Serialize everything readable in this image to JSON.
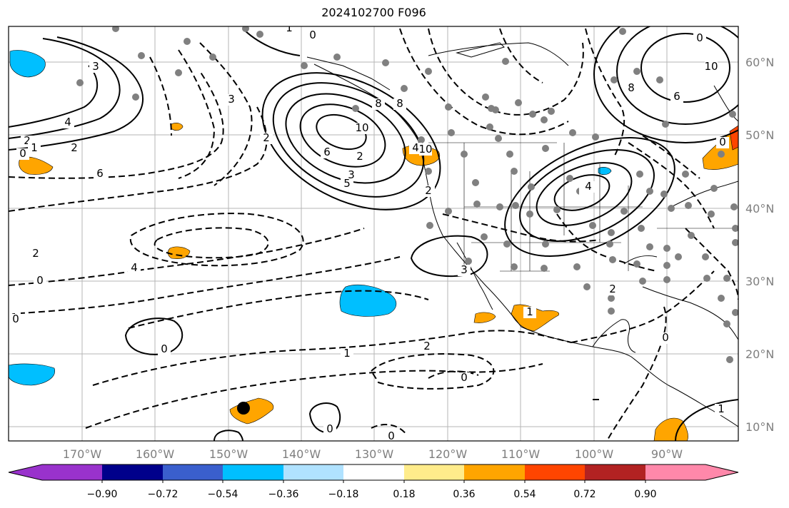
{
  "title": "2024102700 F096",
  "lat_labels": [
    "60°N",
    "50°N",
    "40°N",
    "30°N",
    "20°N",
    "10°N"
  ],
  "lon_labels": [
    "170°W",
    "160°W",
    "150°W",
    "140°W",
    "130°W",
    "120°W",
    "110°W",
    "100°W",
    "90°W"
  ],
  "colorbar": {
    "colors": [
      "#9932cc",
      "#00008b",
      "#3a5fcd",
      "#00bfff",
      "#b0e2ff",
      "#ffffff",
      "#ffec8b",
      "#ffa500",
      "#ff4500",
      "#b22222",
      "#ff88aa"
    ],
    "tick_labels": [
      "−0.90",
      "−0.72",
      "−0.54",
      "−0.36",
      "−0.18",
      "0.18",
      "0.36",
      "0.54",
      "0.72",
      "0.90"
    ]
  },
  "contour_labels": [
    "4",
    "3",
    "2",
    "2",
    "0",
    "1",
    "2",
    "4",
    "3",
    "2",
    "1",
    "0",
    "2",
    "3",
    "10",
    "8",
    "6",
    "4",
    "10",
    "8",
    "6",
    "4",
    "5",
    "3",
    "2",
    "0",
    "1",
    "0",
    "1",
    "2",
    "0",
    "0",
    "0",
    "1",
    "2",
    "1",
    "0",
    "0",
    "0",
    "1",
    "4",
    "6",
    "8",
    "10",
    "0"
  ],
  "marker": "station-marker"
}
